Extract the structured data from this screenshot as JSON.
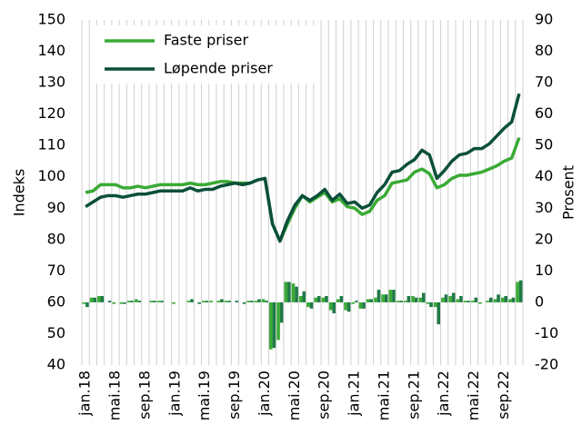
{
  "chart_data": {
    "type": "line",
    "ylabel": "Indeks",
    "y2label": "Prosent",
    "categories": [
      "jan.18",
      null,
      null,
      null,
      "mai.18",
      null,
      null,
      null,
      "sep.18",
      null,
      null,
      null,
      "jan.19",
      null,
      null,
      null,
      "mai.19",
      null,
      null,
      null,
      "sep.19",
      null,
      null,
      null,
      "jan.20",
      null,
      null,
      null,
      "mai.20",
      null,
      null,
      null,
      "sep.20",
      null,
      null,
      null,
      "jan.21",
      null,
      null,
      null,
      "mai.21",
      null,
      null,
      null,
      "sep.21",
      null,
      null,
      null,
      "jan.22",
      null,
      null,
      null,
      "mai.22",
      null,
      null,
      null,
      "sep.22",
      null,
      null
    ],
    "ylim": [
      40,
      150
    ],
    "yticks": [
      40,
      50,
      60,
      70,
      80,
      90,
      100,
      110,
      120,
      130,
      140,
      150
    ],
    "y2lim": [
      -20,
      90
    ],
    "y2ticks": [
      -20,
      -10,
      0,
      10,
      20,
      30,
      40,
      50,
      60,
      70,
      80,
      90
    ],
    "legend": "upper left",
    "grid": "vertical",
    "series": [
      {
        "name": "Faste priser",
        "color": "#3aaa35",
        "values": [
          95,
          95.5,
          97.5,
          97.5,
          97.5,
          96.5,
          96.5,
          97,
          96.5,
          97,
          97.5,
          97.5,
          97.5,
          97.5,
          98,
          97.5,
          97.5,
          98,
          98.5,
          98.5,
          98,
          98,
          98,
          99,
          99.5,
          85,
          79.5,
          85,
          90,
          94,
          92,
          93.5,
          95,
          92,
          93,
          90.5,
          90,
          88,
          89,
          92.5,
          94,
          98,
          98.5,
          99,
          101.5,
          102.5,
          101,
          96.5,
          97.5,
          99.5,
          100.5,
          100.5,
          101,
          101.5,
          102.5,
          103.5,
          105,
          106,
          112.5
        ]
      },
      {
        "name": "Løpende priser",
        "color": "#0b4f3a",
        "values": [
          90.5,
          92,
          93.5,
          94,
          94,
          93.5,
          94,
          94.5,
          94.5,
          95,
          95.5,
          95.5,
          95.5,
          95.5,
          96.5,
          95.5,
          96,
          96,
          97,
          97.5,
          98,
          97.5,
          98,
          99,
          99.5,
          85,
          79.5,
          86,
          91,
          94,
          92.5,
          94,
          96,
          92.5,
          94.5,
          91.5,
          92,
          90,
          91,
          95,
          97.5,
          101.5,
          102,
          104,
          105.5,
          108.5,
          107,
          99.5,
          102,
          105,
          107,
          107.5,
          109,
          109,
          110.5,
          113,
          115.5,
          117.5,
          126.5
        ]
      },
      {
        "type": "bar",
        "axis": "y2",
        "color": "#3aaa35",
        "values": [
          -0.5,
          1.5,
          2,
          0,
          -0.5,
          -0.5,
          0.5,
          1,
          0,
          0.5,
          0.5,
          0,
          -0.5,
          0,
          0.5,
          0,
          0.5,
          0.5,
          0.5,
          0.5,
          0,
          0,
          0.5,
          0.5,
          1,
          -15,
          -12,
          6.5,
          6,
          2,
          -1.5,
          1.5,
          1.5,
          -2.5,
          1,
          -2.5,
          -0.5,
          -2,
          1,
          1.5,
          2.5,
          4,
          0.5,
          0.5,
          2,
          1.5,
          -0.5,
          -1.5,
          1.5,
          2,
          1,
          0.5,
          0.5,
          -0.5,
          0.5,
          1,
          1.5,
          1,
          6.5
        ]
      },
      {
        "type": "bar",
        "axis": "y2",
        "color": "#1e7a46",
        "values": [
          -1.5,
          1.5,
          2,
          0.5,
          0,
          -0.5,
          0.5,
          0.5,
          0,
          0.5,
          0.5,
          0,
          0,
          0,
          1,
          -0.5,
          0.5,
          0,
          1,
          0.5,
          0.5,
          -0.5,
          0.5,
          1,
          0.5,
          -14.5,
          -6.5,
          6.5,
          5,
          3.5,
          -2,
          2,
          2,
          -3.5,
          2,
          -3,
          0.5,
          -2,
          1,
          4,
          2.5,
          4,
          0.5,
          2,
          1.5,
          3,
          -1.5,
          -7,
          2.5,
          3,
          2,
          0.5,
          1.5,
          0,
          1.5,
          2.5,
          2,
          1.5,
          7
        ]
      }
    ]
  }
}
